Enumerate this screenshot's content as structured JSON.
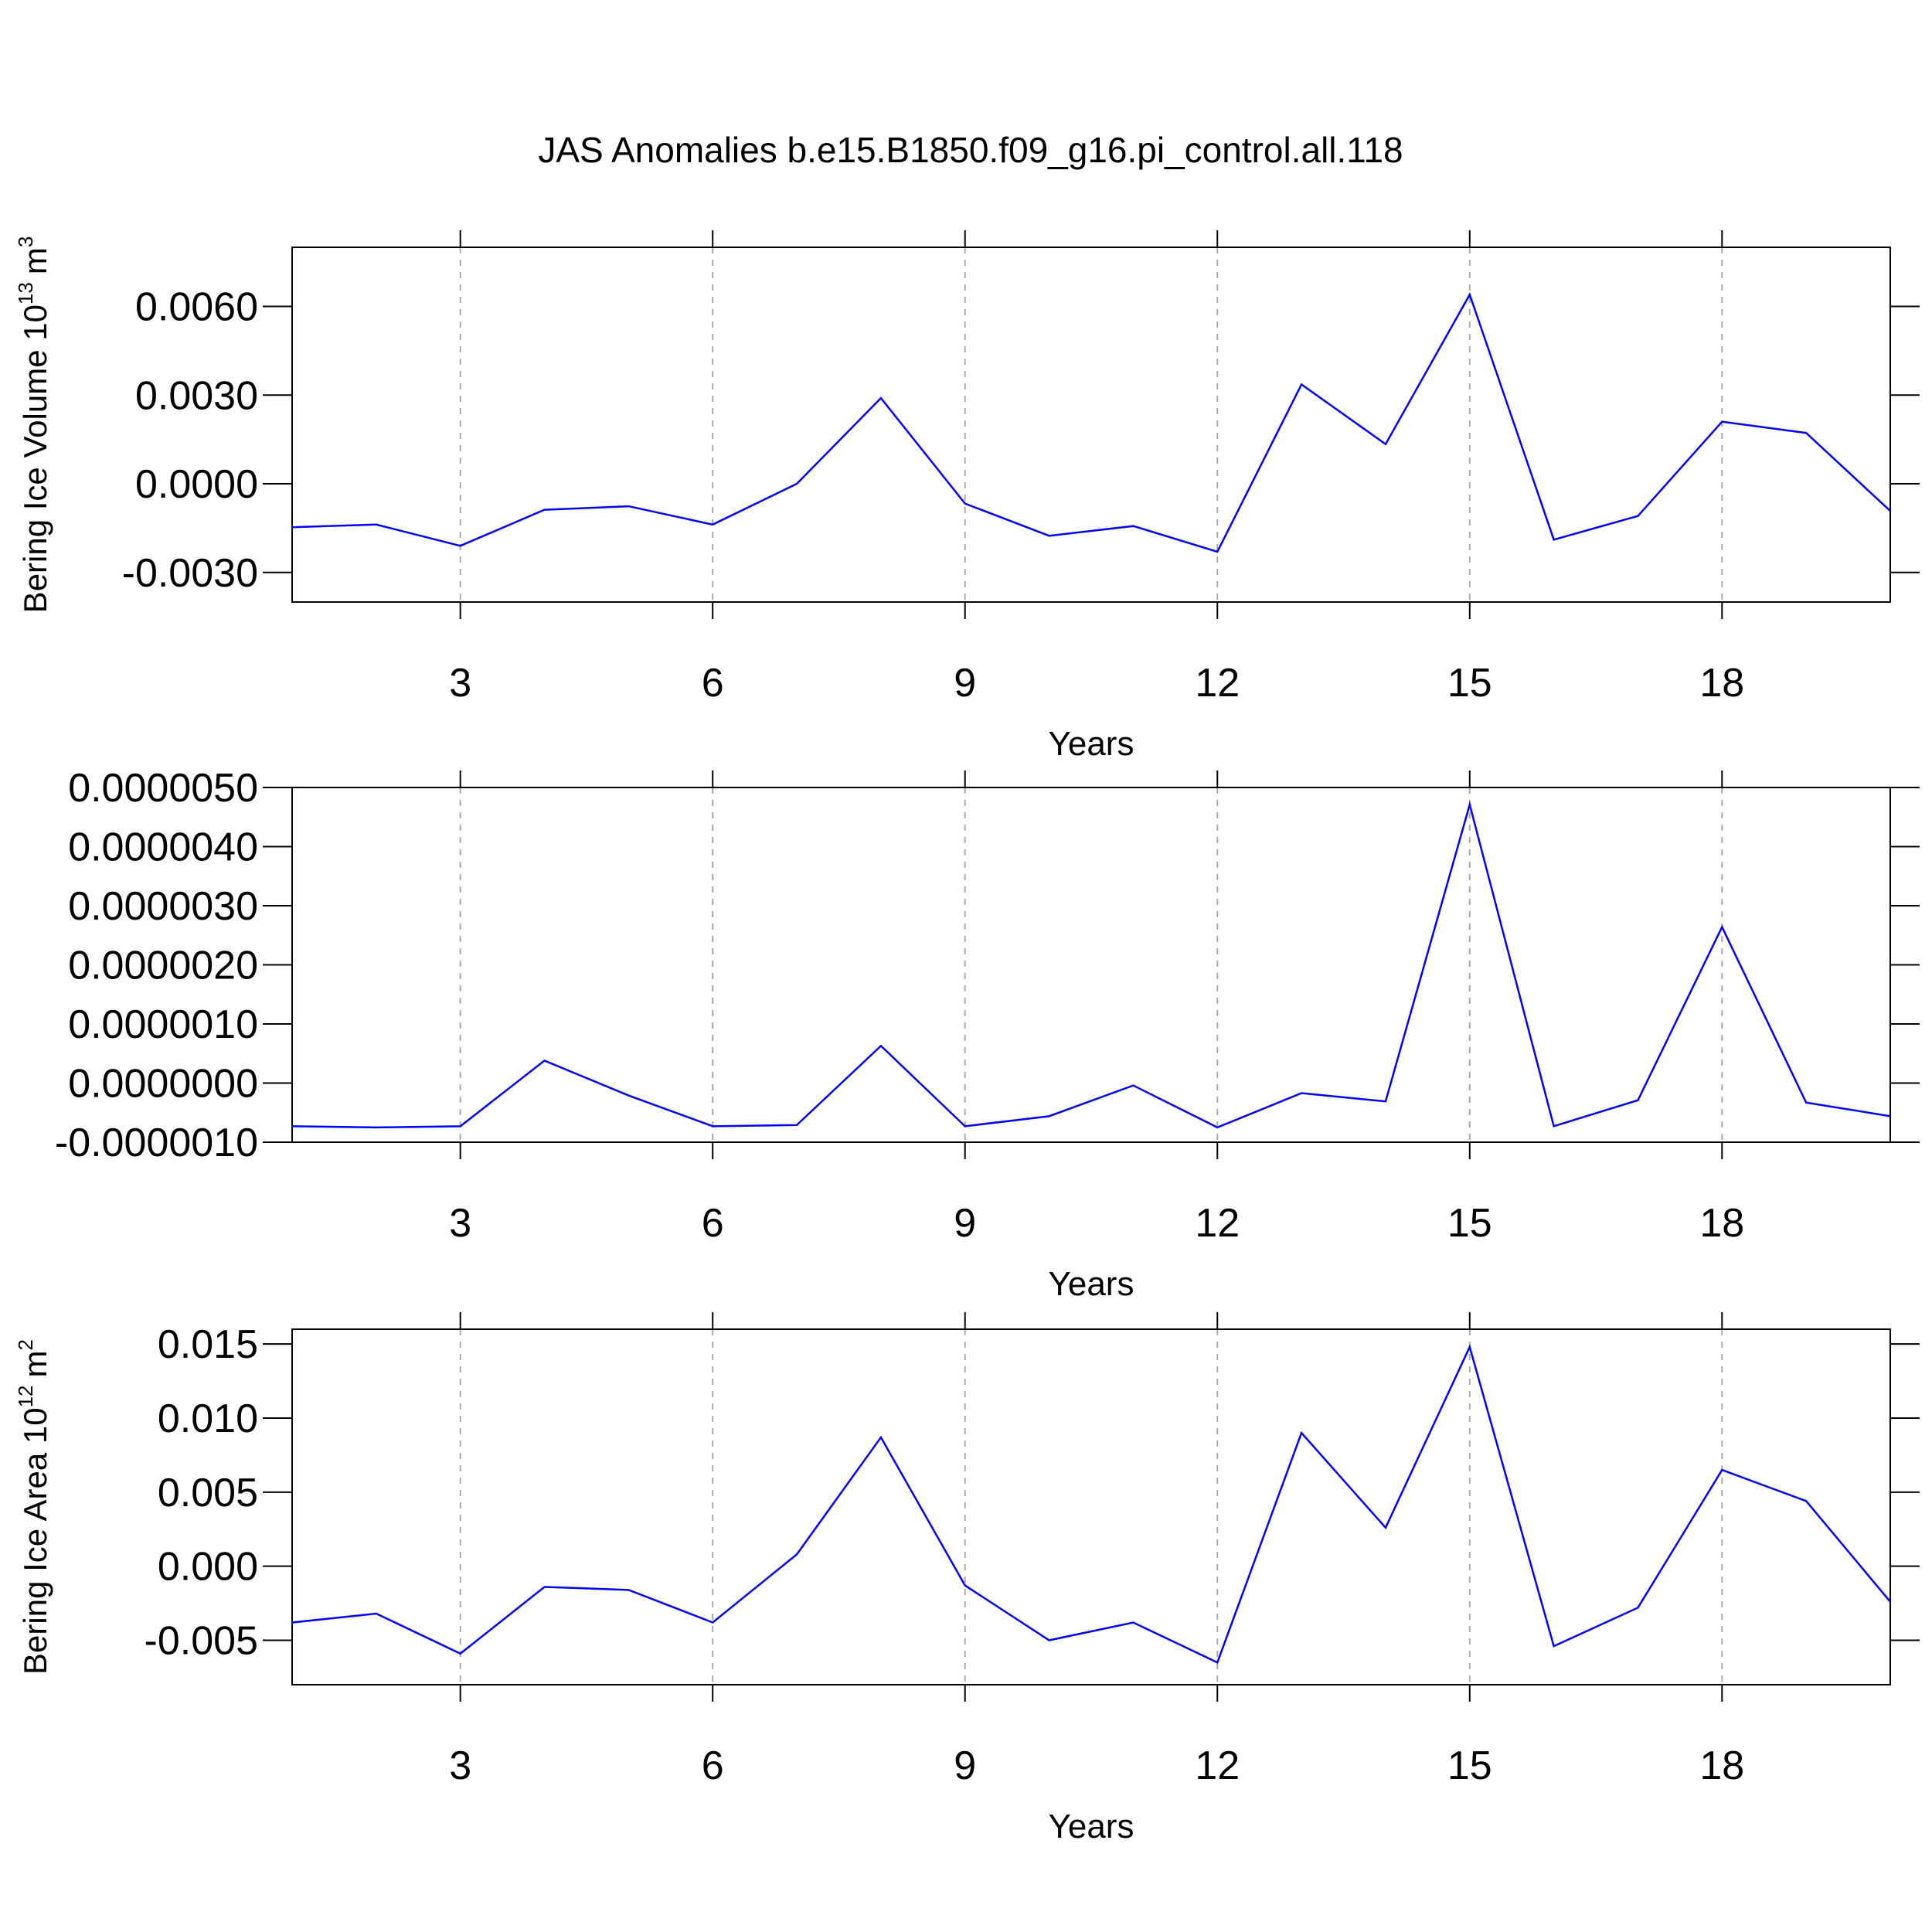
{
  "chart_data": [
    {
      "type": "line",
      "title": "JAS Anomalies b.e15.B1850.f09_g16.pi_control.all.118",
      "ylabel": [
        "Bering Ice Volume 10",
        "13",
        "m",
        "3"
      ],
      "xlabel": "Years",
      "x": [
        1,
        2,
        3,
        4,
        5,
        6,
        7,
        8,
        9,
        10,
        11,
        12,
        13,
        14,
        15,
        16,
        17,
        18,
        19,
        20
      ],
      "series": [
        {
          "color": "#0000ff",
          "values": [
            -0.00147,
            -0.00138,
            -0.0021,
            -0.00088,
            -0.00076,
            -0.00138,
            0.0,
            0.0029,
            -0.00067,
            -0.00176,
            -0.00143,
            -0.0023,
            0.00336,
            0.00134,
            0.0064,
            -0.00189,
            -0.00109,
            0.0021,
            0.00172,
            -0.00092
          ]
        }
      ],
      "xlim": [
        1,
        20
      ],
      "xticks": [
        3,
        6,
        9,
        12,
        15,
        18
      ],
      "ylim": [
        -0.004,
        0.008
      ],
      "yticks": [
        {
          "value": -0.003,
          "label": "-0.0030"
        },
        {
          "value": 0,
          "label": "0.0000"
        },
        {
          "value": 0.003,
          "label": "0.0030"
        },
        {
          "value": 0.006,
          "label": "0.0060"
        }
      ],
      "grid": true
    },
    {
      "type": "line",
      "xlabel": "Years",
      "x": [
        1,
        2,
        3,
        4,
        5,
        6,
        7,
        8,
        9,
        10,
        11,
        12,
        13,
        14,
        15,
        16,
        17,
        18,
        19,
        20
      ],
      "series": [
        {
          "color": "#0000ff",
          "values": [
            -7.3e-07,
            -7.5e-07,
            -7.3e-07,
            3.8e-07,
            -2.1e-07,
            -7.3e-07,
            -7.1e-07,
            6.3e-07,
            -7.3e-07,
            -5.6e-07,
            -4e-08,
            -7.5e-07,
            -1.7e-07,
            -3.1e-07,
            4.71e-06,
            -7.3e-07,
            -2.9e-07,
            2.64e-06,
            -3.3e-07,
            -5.6e-07
          ]
        }
      ],
      "xlim": [
        1,
        20
      ],
      "xticks": [
        3,
        6,
        9,
        12,
        15,
        18
      ],
      "ylim": [
        -1e-06,
        5e-06
      ],
      "yticks": [
        {
          "value": -1e-06,
          "label": "-0.0000010"
        },
        {
          "value": 0,
          "label": "0.0000000"
        },
        {
          "value": 1e-06,
          "label": "0.0000010"
        },
        {
          "value": 2e-06,
          "label": "0.0000020"
        },
        {
          "value": 3e-06,
          "label": "0.0000030"
        },
        {
          "value": 4e-06,
          "label": "0.0000040"
        },
        {
          "value": 5e-06,
          "label": "0.0000050"
        }
      ],
      "grid": true
    },
    {
      "type": "line",
      "ylabel": [
        "Bering Ice Area 10",
        "12",
        "m",
        "2"
      ],
      "xlabel": "Years",
      "x": [
        1,
        2,
        3,
        4,
        5,
        6,
        7,
        8,
        9,
        10,
        11,
        12,
        13,
        14,
        15,
        16,
        17,
        18,
        19,
        20
      ],
      "series": [
        {
          "color": "#0000ff",
          "values": [
            -0.0038,
            -0.0032,
            -0.0059,
            -0.0014,
            -0.0016,
            -0.0038,
            0.0008,
            0.0087,
            -0.0013,
            -0.005,
            -0.0038,
            -0.0065,
            0.009,
            0.0026,
            0.0148,
            -0.0054,
            -0.0028,
            0.0065,
            0.0044,
            -0.0024
          ]
        }
      ],
      "xlim": [
        1,
        20
      ],
      "xticks": [
        3,
        6,
        9,
        12,
        15,
        18
      ],
      "ylim": [
        -0.008,
        0.016
      ],
      "yticks": [
        {
          "value": -0.005,
          "label": "-0.005"
        },
        {
          "value": 0,
          "label": "0.000"
        },
        {
          "value": 0.005,
          "label": "0.005"
        },
        {
          "value": 0.01,
          "label": "0.010"
        },
        {
          "value": 0.015,
          "label": "0.015"
        }
      ],
      "grid": true
    }
  ]
}
